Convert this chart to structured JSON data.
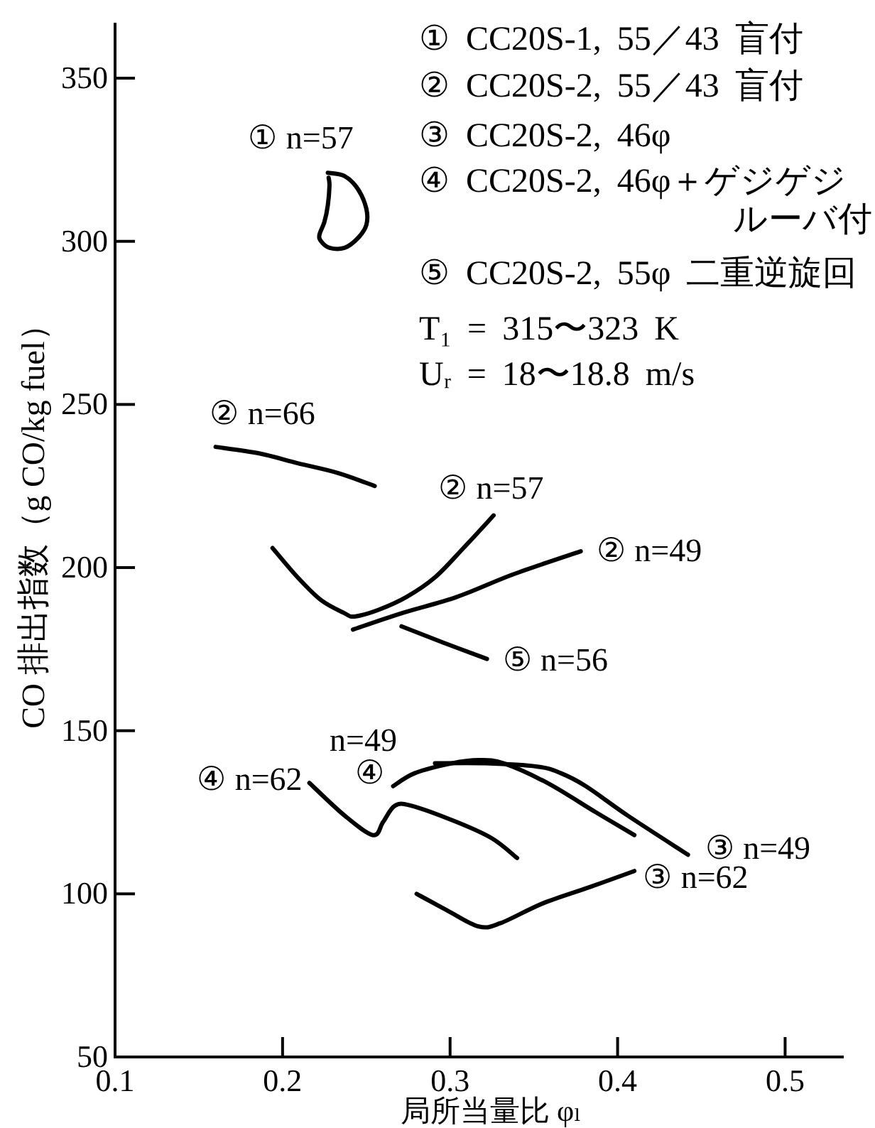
{
  "chart_data": {
    "type": "line",
    "xlabel": "局所当量比 φₗ",
    "ylabel": "CO 排出指数（g CO/kg fuel）",
    "xlim": [
      0.1,
      0.535
    ],
    "ylim": [
      50,
      367
    ],
    "xticks": [
      0.1,
      0.2,
      0.3,
      0.4,
      0.5
    ],
    "yticks": [
      50,
      100,
      150,
      200,
      250,
      300,
      350
    ],
    "marker": "none",
    "line_style": "solid",
    "series": [
      {
        "name": "① n=57",
        "color": "#000000",
        "x": [
          0.227,
          0.237,
          0.245,
          0.25,
          0.25,
          0.245,
          0.237,
          0.228,
          0.223,
          0.222,
          0.225,
          0.227,
          0.228,
          0.2275
        ],
        "values": [
          321,
          320,
          316,
          310,
          305,
          301,
          298,
          298,
          300,
          302,
          306,
          311,
          317,
          319.5
        ]
      },
      {
        "name": "② n=66",
        "color": "#000000",
        "x": [
          0.16,
          0.186,
          0.209,
          0.233,
          0.255
        ],
        "values": [
          237,
          235,
          232,
          229,
          225
        ]
      },
      {
        "name": "② n=57",
        "color": "#000000",
        "x": [
          0.194,
          0.209,
          0.223,
          0.237,
          0.243,
          0.257,
          0.274,
          0.291,
          0.308,
          0.326
        ],
        "values": [
          206,
          197,
          190,
          186,
          185,
          187,
          191,
          197,
          206,
          216
        ]
      },
      {
        "name": "② n=49",
        "color": "#000000",
        "x": [
          0.242,
          0.271,
          0.304,
          0.338,
          0.378
        ],
        "values": [
          181,
          186,
          191,
          198,
          205
        ]
      },
      {
        "name": "⑤ n=56",
        "color": "#000000",
        "x": [
          0.271,
          0.296,
          0.322
        ],
        "values": [
          182,
          177,
          172
        ]
      },
      {
        "name": "④ n=62",
        "color": "#000000",
        "x": [
          0.216,
          0.237,
          0.254,
          0.26,
          0.267,
          0.277,
          0.304,
          0.325,
          0.34
        ],
        "values": [
          134,
          124,
          118,
          122,
          127,
          127,
          122,
          117,
          111
        ]
      },
      {
        "name": "④ n=49",
        "color": "#000000",
        "x": [
          0.266,
          0.279,
          0.301,
          0.317,
          0.332,
          0.358,
          0.387,
          0.41
        ],
        "values": [
          133,
          137,
          140,
          141,
          140,
          134,
          125,
          118
        ]
      },
      {
        "name": "③ n=49",
        "color": "#000000",
        "x": [
          0.291,
          0.321,
          0.352,
          0.366,
          0.381,
          0.406,
          0.442
        ],
        "values": [
          140,
          140,
          139,
          137,
          133,
          124,
          112
        ]
      },
      {
        "name": "③ n=62",
        "color": "#000000",
        "x": [
          0.28,
          0.298,
          0.317,
          0.33,
          0.355,
          0.383,
          0.41
        ],
        "values": [
          100,
          95,
          90,
          91,
          97,
          102,
          107
        ]
      }
    ],
    "annotations": [
      "① CC20S-1, 55／43 盲付",
      "② CC20S-2, 55／43 盲付",
      "③ CC20S-2, 46φ",
      "④ CC20S-2, 46φ＋ゲジゲジルーバ付",
      "⑤ CC20S-2, 55φ 二重逆旋回",
      "T₁ = 315〜323 K",
      "Uᵣ = 18〜18.8 m/s"
    ]
  }
}
